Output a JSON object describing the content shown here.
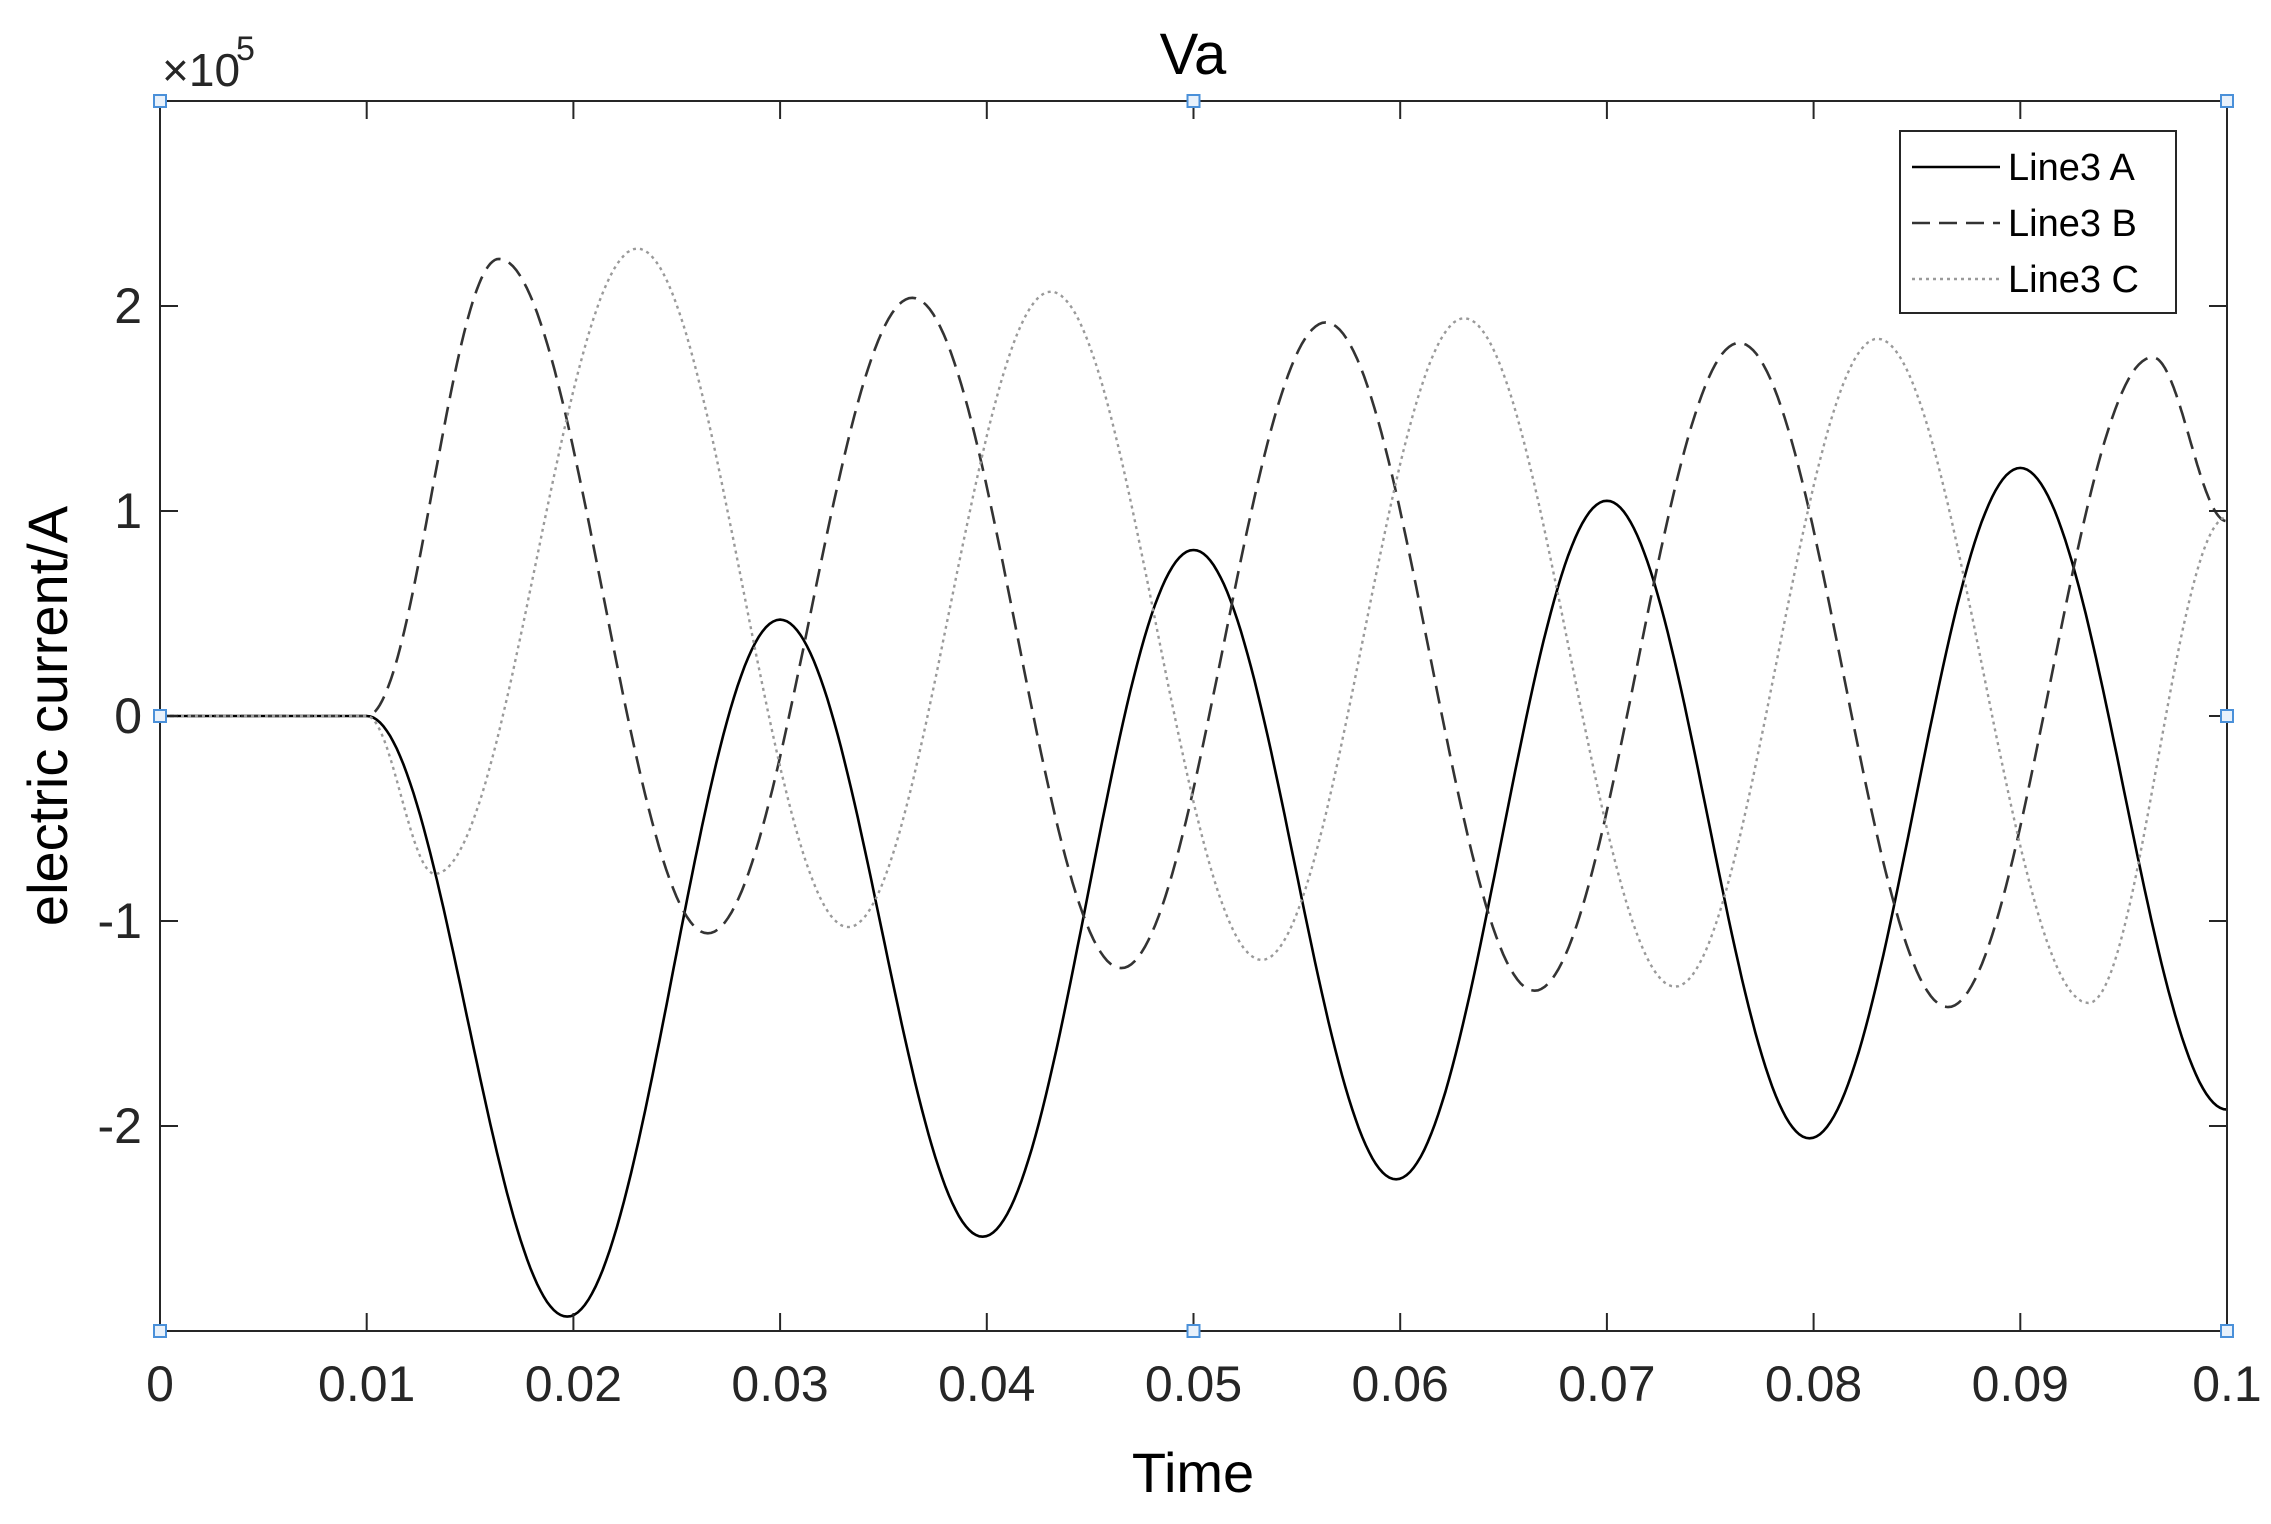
{
  "chart_data": {
    "type": "line",
    "title": "Va",
    "xlabel": "Time",
    "ylabel": "electric current/A",
    "y_exponent_prefix": "×10",
    "y_exponent": "5",
    "xlim": [
      0,
      0.1
    ],
    "ylim": [
      -300000,
      300000
    ],
    "x_ticks": [
      0,
      0.01,
      0.02,
      0.03,
      0.04,
      0.05,
      0.06,
      0.07,
      0.08,
      0.09,
      0.1
    ],
    "x_tick_labels": [
      "0",
      "0.01",
      "0.02",
      "0.03",
      "0.04",
      "0.05",
      "0.06",
      "0.07",
      "0.08",
      "0.09",
      "0.1"
    ],
    "y_ticks": [
      -200000,
      -100000,
      0,
      100000,
      200000
    ],
    "y_tick_labels": [
      "-2",
      "-1",
      "0",
      "1",
      "2"
    ],
    "grid": false,
    "legend_position": "top-right",
    "series": [
      {
        "name": "Line3 A",
        "style": "solid",
        "color": "#000000",
        "x": [
          0,
          0.01,
          0.0197,
          0.03,
          0.0398,
          0.05,
          0.0598,
          0.07,
          0.0798,
          0.09,
          0.1
        ],
        "y": [
          0,
          0,
          -293000,
          47000,
          -254000,
          81000,
          -226000,
          105000,
          -206000,
          121000,
          -192000
        ]
      },
      {
        "name": "Line3 B",
        "style": "dashed",
        "color": "#333333",
        "x": [
          0,
          0.01,
          0.0164,
          0.0265,
          0.0364,
          0.0465,
          0.0564,
          0.0665,
          0.0764,
          0.0865,
          0.0964,
          0.1
        ],
        "y": [
          0,
          0,
          223000,
          -106000,
          204000,
          -123000,
          192000,
          -134000,
          182000,
          -142000,
          175000,
          95000
        ]
      },
      {
        "name": "Line3 C",
        "style": "dotted",
        "color": "#9a9a9a",
        "x": [
          0,
          0.01,
          0.0133,
          0.0231,
          0.0333,
          0.0431,
          0.0533,
          0.0631,
          0.0733,
          0.0831,
          0.0933,
          0.1
        ],
        "y": [
          0,
          0,
          -77000,
          228000,
          -103000,
          207000,
          -119000,
          194000,
          -132000,
          184000,
          -140000,
          97000
        ]
      }
    ]
  }
}
